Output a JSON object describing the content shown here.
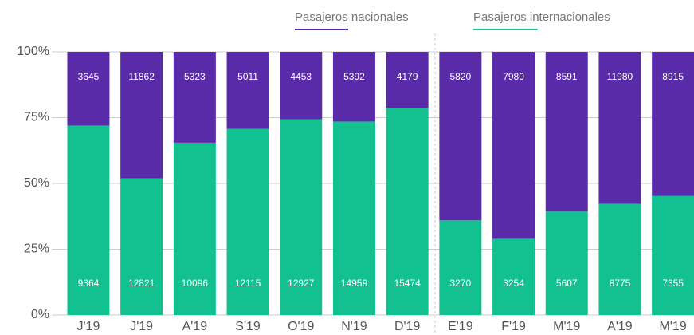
{
  "chart_data": {
    "type": "bar",
    "stacking": "percent",
    "categories": [
      "J'19",
      "J'19",
      "A'19",
      "S'19",
      "O'19",
      "N'19",
      "D'19",
      "E'19",
      "F'19",
      "M'19",
      "A'19",
      "M'19"
    ],
    "series": [
      {
        "name": "Pasajeros internacionales",
        "color": "#13c08f",
        "values": [
          9364,
          12821,
          10096,
          12115,
          12927,
          14959,
          15474,
          3270,
          3254,
          5607,
          8775,
          7355
        ]
      },
      {
        "name": "Pasajeros nacionales",
        "color": "#5a2ba8",
        "values": [
          3645,
          11862,
          5323,
          5011,
          4453,
          5392,
          4179,
          5820,
          7980,
          8591,
          11980,
          8915
        ]
      }
    ],
    "ylim": [
      0,
      100
    ],
    "yticks": [
      {
        "value": 0,
        "label": "0%"
      },
      {
        "value": 25,
        "label": "25%"
      },
      {
        "value": 50,
        "label": "50%"
      },
      {
        "value": 75,
        "label": "75%"
      },
      {
        "value": 100,
        "label": "100%"
      }
    ],
    "grid": true
  }
}
